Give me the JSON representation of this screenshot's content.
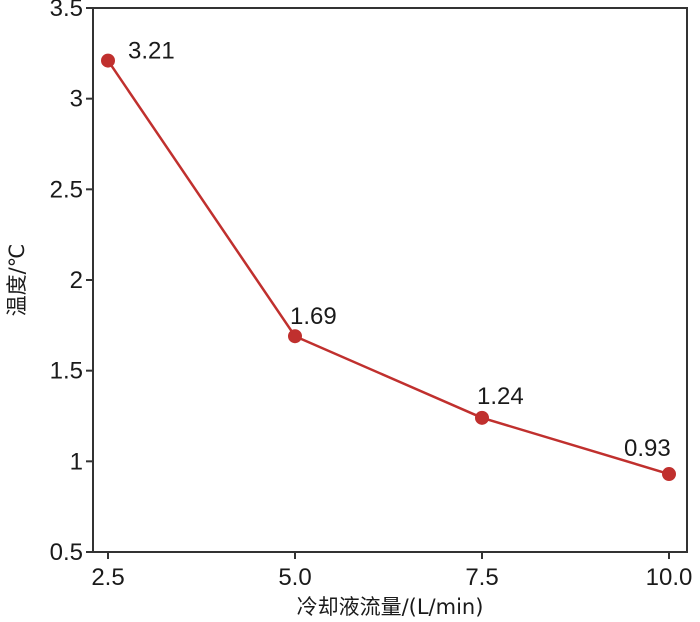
{
  "chart_data": {
    "type": "line",
    "xlabel": "冷却液流量/(L/min)",
    "ylabel": "温度/℃",
    "x": [
      2.5,
      5.0,
      7.5,
      10.0
    ],
    "x_tick_labels": [
      "2.5",
      "5.0",
      "7.5",
      "10.0"
    ],
    "ylim": [
      0.5,
      3.5
    ],
    "y_ticks": [
      0.5,
      1,
      1.5,
      2,
      2.5,
      3,
      3.5
    ],
    "y_tick_labels": [
      "0.5",
      "1",
      "1.5",
      "2",
      "2.5",
      "3",
      "3.5"
    ],
    "series": [
      {
        "values": [
          3.21,
          1.69,
          1.24,
          0.93
        ],
        "data_labels": [
          "3.21",
          "1.69",
          "1.24",
          "0.93"
        ],
        "color": "#c0302e"
      }
    ],
    "grid": false,
    "legend": "none"
  }
}
